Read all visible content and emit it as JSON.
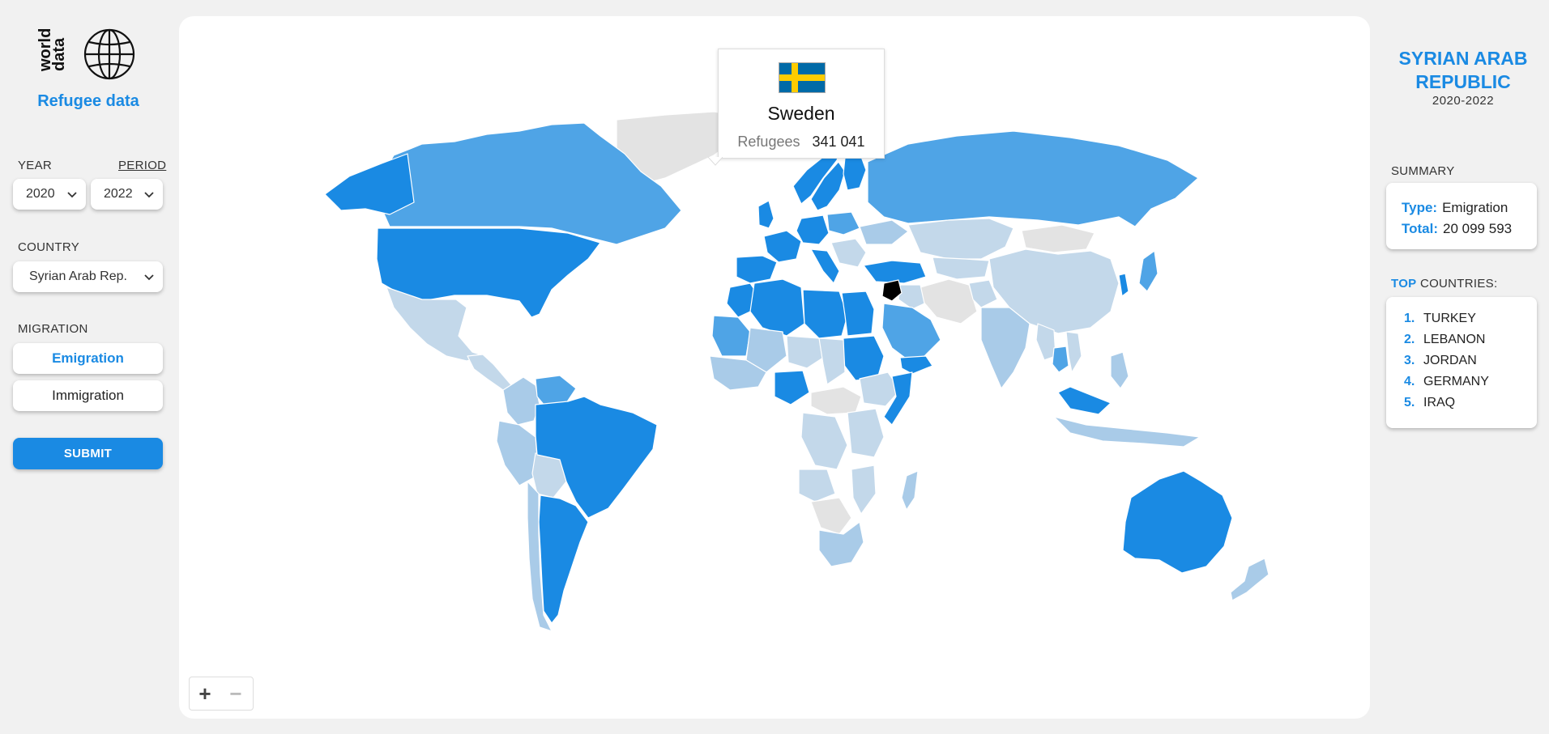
{
  "brand": {
    "logo_text": "world data",
    "title": "Refugee data"
  },
  "filters": {
    "year_label": "YEAR",
    "period_label": "PERIOD",
    "year_value": "2020",
    "period_value": "2022",
    "country_label": "COUNTRY",
    "country_value": "Syrian Arab Rep.",
    "migration_label": "MIGRATION",
    "emigration_label": "Emigration",
    "immigration_label": "Immigration",
    "selected_migration": "Emigration",
    "submit_label": "SUBMIT"
  },
  "tooltip": {
    "country": "Sweden",
    "flag_colors": {
      "field": "#006aa7",
      "cross": "#fecc00"
    },
    "label": "Refugees",
    "value": "341 041"
  },
  "map": {
    "highlight_country": "Syrian Arab Republic",
    "colors": {
      "highest": "#1a8ae3",
      "high": "#4fa4e6",
      "medium": "#a9cbe8",
      "low": "#c3d8ea",
      "no_data": "#e3e3e3",
      "selected": "#000000",
      "border": "#ffffff"
    },
    "zoom_in_icon": "plus-icon",
    "zoom_out_icon": "minus-icon"
  },
  "details": {
    "country_title": "SYRIAN ARAB REPUBLIC",
    "period": "2020-2022",
    "summary_label": "SUMMARY",
    "type_key": "Type:",
    "type_value": "Emigration",
    "total_key": "Total:",
    "total_value": "20 099 593",
    "top_label_accent": "TOP",
    "top_label_rest": "COUNTRIES:",
    "top_countries": [
      {
        "rank": "1.",
        "name": "TURKEY"
      },
      {
        "rank": "2.",
        "name": "LEBANON"
      },
      {
        "rank": "3.",
        "name": "JORDAN"
      },
      {
        "rank": "4.",
        "name": "GERMANY"
      },
      {
        "rank": "5.",
        "name": "IRAQ"
      }
    ]
  }
}
